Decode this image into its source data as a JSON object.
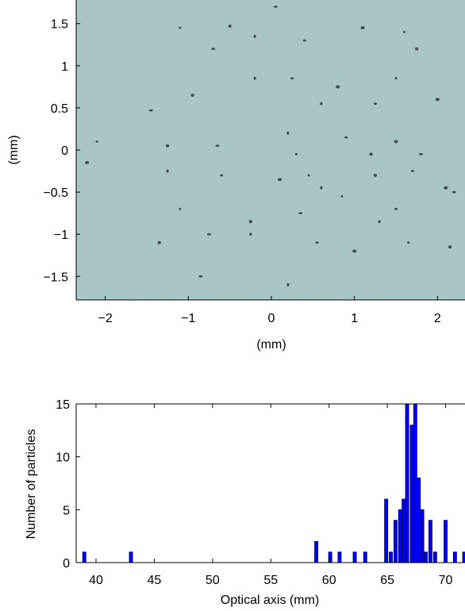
{
  "chart_data": [
    {
      "type": "image",
      "xlabel": "(mm)",
      "ylabel": "(mm)",
      "xlim": [
        -2.35,
        2.35
      ],
      "ylim": [
        -1.78,
        1.78
      ],
      "xticks": [
        {
          "value": -2,
          "label": "−2"
        },
        {
          "value": -1,
          "label": "−1"
        },
        {
          "value": 0,
          "label": "0"
        },
        {
          "value": 1,
          "label": "1"
        },
        {
          "value": 2,
          "label": "2"
        }
      ],
      "yticks": [
        {
          "value": 1.5,
          "label": "1.5"
        },
        {
          "value": 1,
          "label": "1"
        },
        {
          "value": 0.5,
          "label": "0.5"
        },
        {
          "value": 0,
          "label": "0"
        },
        {
          "value": -0.5,
          "label": "−0.5"
        },
        {
          "value": -1,
          "label": "−1"
        },
        {
          "value": -1.5,
          "label": "−1.5"
        }
      ],
      "background_color": "#a9c7c5",
      "particle_color": "#2f3c40",
      "particles": [
        [
          -1.1,
          1.45
        ],
        [
          -0.5,
          1.47
        ],
        [
          -0.7,
          1.2
        ],
        [
          -0.2,
          1.35
        ],
        [
          0.4,
          1.3
        ],
        [
          1.1,
          1.45
        ],
        [
          1.6,
          1.4
        ],
        [
          1.75,
          1.2
        ],
        [
          0.05,
          1.7
        ],
        [
          -0.2,
          0.85
        ],
        [
          0.25,
          0.85
        ],
        [
          0.8,
          0.75
        ],
        [
          1.5,
          0.85
        ],
        [
          -0.95,
          0.65
        ],
        [
          -1.45,
          0.47
        ],
        [
          0.6,
          0.55
        ],
        [
          1.25,
          0.55
        ],
        [
          2.0,
          0.6
        ],
        [
          -2.1,
          0.1
        ],
        [
          -1.25,
          0.05
        ],
        [
          -0.65,
          0.05
        ],
        [
          0.2,
          0.2
        ],
        [
          0.9,
          0.15
        ],
        [
          1.5,
          0.1
        ],
        [
          0.3,
          -0.05
        ],
        [
          1.2,
          -0.05
        ],
        [
          1.8,
          -0.05
        ],
        [
          -1.25,
          -0.25
        ],
        [
          -0.6,
          -0.3
        ],
        [
          0.1,
          -0.35
        ],
        [
          0.45,
          -0.3
        ],
        [
          1.25,
          -0.3
        ],
        [
          2.2,
          -0.5
        ],
        [
          0.6,
          -0.45
        ],
        [
          1.7,
          -0.25
        ],
        [
          -2.22,
          -0.15
        ],
        [
          -1.1,
          -0.7
        ],
        [
          -0.25,
          -0.85
        ],
        [
          0.35,
          -0.75
        ],
        [
          1.3,
          -0.85
        ],
        [
          1.5,
          -0.7
        ],
        [
          2.1,
          -0.45
        ],
        [
          0.85,
          -0.55
        ],
        [
          -1.35,
          -1.1
        ],
        [
          -0.75,
          -1.0
        ],
        [
          -0.25,
          -1.0
        ],
        [
          0.55,
          -1.1
        ],
        [
          1.0,
          -1.2
        ],
        [
          1.65,
          -1.1
        ],
        [
          2.15,
          -1.15
        ],
        [
          -0.85,
          -1.5
        ],
        [
          0.2,
          -1.6
        ]
      ]
    },
    {
      "type": "bar",
      "xlabel": "Optical axis (mm)",
      "ylabel": "Number of particles",
      "xlim": [
        38.3,
        71.8
      ],
      "ylim": [
        0,
        15
      ],
      "xticks": [
        40,
        45,
        50,
        55,
        60,
        65,
        70
      ],
      "yticks": [
        0,
        5,
        10,
        15
      ],
      "bar_color": "#0000ff",
      "bar_edge_color": "#00006b",
      "bar_width": 0.28,
      "x": [
        39,
        43,
        58.9,
        60.1,
        60.9,
        62.2,
        63.1,
        64.9,
        65.3,
        65.7,
        66.1,
        66.4,
        66.7,
        67.1,
        67.4,
        67.7,
        68.0,
        68.3,
        68.7,
        69.1,
        70.0,
        70.8,
        71.6
      ],
      "values": [
        1,
        1,
        2,
        1,
        1,
        1,
        1,
        6,
        1,
        4,
        5,
        6,
        15,
        13,
        15,
        8,
        5,
        1,
        4,
        1,
        4,
        1,
        1
      ]
    }
  ]
}
